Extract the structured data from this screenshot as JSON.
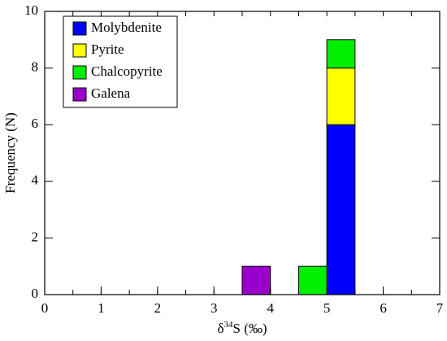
{
  "chart_data": {
    "type": "histogram",
    "ylabel": "Frequency (N)",
    "xlabel": {
      "prefix": "δ",
      "sup": "34",
      "suffix": "S (‰)"
    },
    "bins": [
      0,
      0.5,
      1,
      1.5,
      2,
      2.5,
      3,
      3.5,
      4,
      4.5,
      5,
      5.5,
      6,
      6.5,
      7
    ],
    "series": [
      {
        "name": "Molybdenite",
        "color": "#0000ff",
        "values": [
          0,
          0,
          0,
          0,
          0,
          0,
          0,
          0,
          0,
          0,
          6,
          0,
          0,
          0
        ]
      },
      {
        "name": "Pyrite",
        "color": "#ffff00",
        "values": [
          0,
          0,
          0,
          0,
          0,
          0,
          0,
          0,
          0,
          0,
          2,
          0,
          0,
          0
        ]
      },
      {
        "name": "Chalcopyrite",
        "color": "#00ee00",
        "values": [
          0,
          0,
          0,
          0,
          0,
          0,
          0,
          0,
          0,
          1,
          1,
          0,
          0,
          0
        ]
      },
      {
        "name": "Galena",
        "color": "#9900cc",
        "values": [
          0,
          0,
          0,
          0,
          0,
          0,
          0,
          1,
          0,
          0,
          0,
          0,
          0,
          0
        ]
      }
    ],
    "stacked": true,
    "xlim": [
      0,
      7
    ],
    "xticks": [
      0,
      1,
      2,
      3,
      4,
      5,
      6,
      7
    ],
    "ylim": [
      0,
      10
    ],
    "yticks": [
      0,
      2,
      4,
      6,
      8,
      10
    ],
    "legend": "upper-left"
  }
}
